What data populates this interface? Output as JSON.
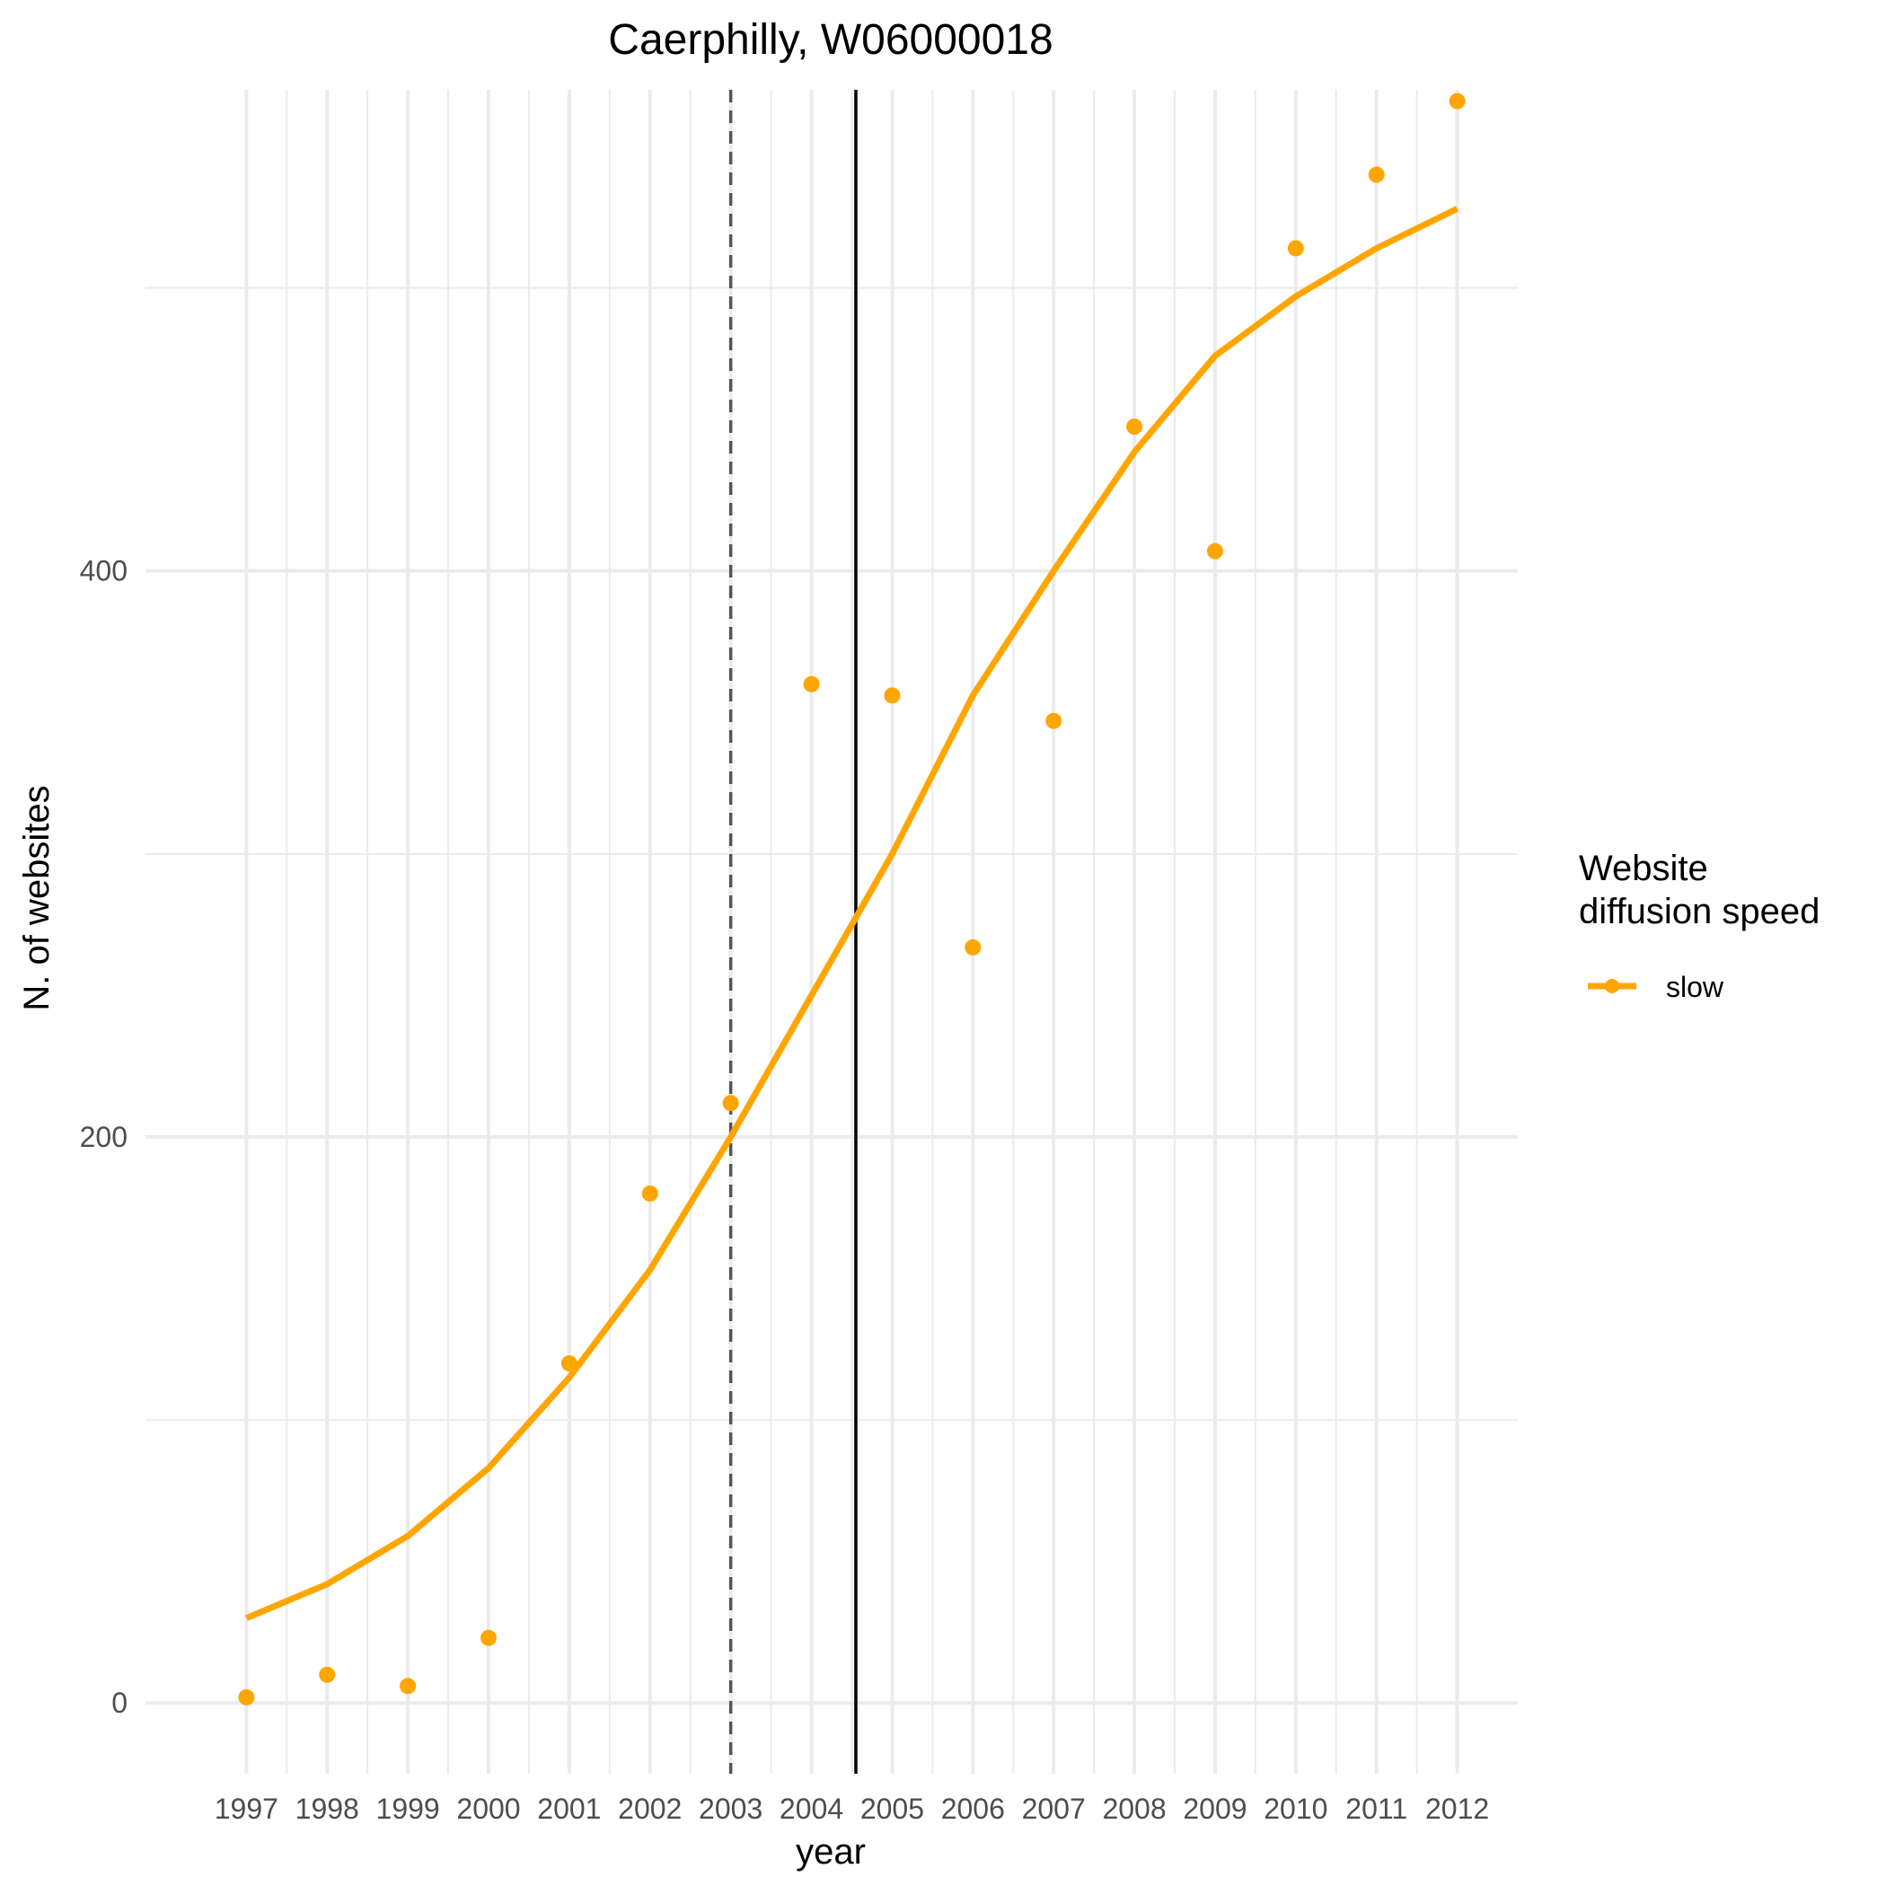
{
  "chart_data": {
    "type": "line",
    "title": "Caerphilly, W06000018",
    "xlabel": "year",
    "ylabel": "N. of websites",
    "x": [
      1997,
      1998,
      1999,
      2000,
      2001,
      2002,
      2003,
      2004,
      2005,
      2006,
      2007,
      2008,
      2009,
      2010,
      2011,
      2012
    ],
    "x_tick_labels": [
      "1997",
      "1998",
      "1999",
      "2000",
      "2001",
      "2002",
      "2003",
      "2004",
      "2005",
      "2006",
      "2007",
      "2008",
      "2009",
      "2010",
      "2011",
      "2012"
    ],
    "y_ticks": [
      0,
      200,
      400
    ],
    "y_tick_labels": [
      "0",
      "200",
      "400"
    ],
    "xlim": [
      1995.75,
      2012.75
    ],
    "ylim": [
      -25,
      570
    ],
    "grid": true,
    "legend_position": "right",
    "legend_title": [
      "Website",
      "diffusion speed"
    ],
    "series": [
      {
        "name": "slow",
        "color": "#FFA500",
        "points": [
          2,
          10,
          6,
          23,
          120,
          180,
          212,
          360,
          356,
          267,
          347,
          451,
          407,
          514,
          540,
          566
        ],
        "fitted": [
          30,
          42,
          59,
          83,
          115,
          153,
          200,
          250,
          300,
          356,
          400,
          442,
          476,
          497,
          514,
          528
        ]
      }
    ],
    "reference_lines": [
      {
        "x": 2003,
        "style": "dashed",
        "color": "#555555"
      },
      {
        "x": 2004.55,
        "style": "solid",
        "color": "#000000"
      }
    ]
  }
}
